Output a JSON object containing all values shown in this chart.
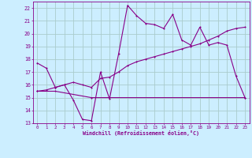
{
  "xlabel": "Windchill (Refroidissement éolien,°C)",
  "bg_color": "#cceeff",
  "grid_color": "#aacccc",
  "line_color": "#880088",
  "x_ticks": [
    0,
    1,
    2,
    3,
    4,
    5,
    6,
    7,
    8,
    9,
    10,
    11,
    12,
    13,
    14,
    15,
    16,
    17,
    18,
    19,
    20,
    21,
    22,
    23
  ],
  "ylim": [
    13,
    22.5
  ],
  "xlim": [
    -0.5,
    23.5
  ],
  "yticks": [
    13,
    14,
    15,
    16,
    17,
    18,
    19,
    20,
    21,
    22
  ],
  "series1_x": [
    0,
    1,
    2,
    3,
    4,
    5,
    6,
    7,
    8,
    9,
    10,
    11,
    12,
    13,
    14,
    15,
    16,
    17,
    18,
    19,
    20,
    21,
    22,
    23
  ],
  "series1_y": [
    17.7,
    17.3,
    15.8,
    16.0,
    14.8,
    13.3,
    13.2,
    17.0,
    14.9,
    18.4,
    22.2,
    21.4,
    20.8,
    20.7,
    20.4,
    21.5,
    19.5,
    19.1,
    20.5,
    19.1,
    19.3,
    19.1,
    16.7,
    15.0
  ],
  "series2_x": [
    0,
    2,
    6,
    23
  ],
  "series2_y": [
    15.5,
    15.5,
    15.0,
    15.0
  ],
  "series3_x": [
    0,
    1,
    2,
    3,
    4,
    5,
    6,
    7,
    8,
    9,
    10,
    11,
    12,
    13,
    14,
    15,
    16,
    17,
    18,
    19,
    20,
    21,
    22,
    23
  ],
  "series3_y": [
    15.5,
    15.6,
    15.8,
    16.0,
    16.2,
    16.0,
    15.8,
    16.5,
    16.6,
    17.0,
    17.5,
    17.8,
    18.0,
    18.2,
    18.4,
    18.6,
    18.8,
    19.0,
    19.2,
    19.5,
    19.8,
    20.2,
    20.4,
    20.5
  ]
}
